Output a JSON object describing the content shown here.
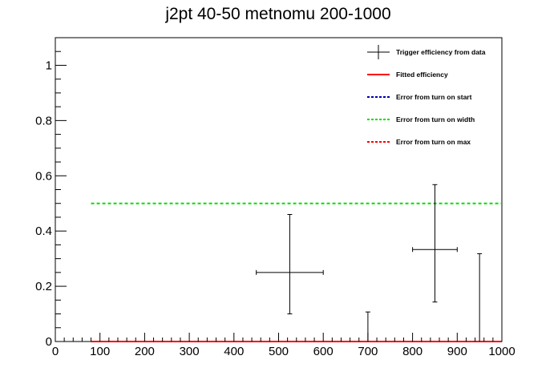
{
  "chart_data": {
    "type": "scatter",
    "title": "j2pt 40-50 metnomu 200-1000",
    "xlabel": "",
    "ylabel": "",
    "xlim": [
      0,
      1000
    ],
    "ylim": [
      0,
      1.1
    ],
    "x_ticks": [
      "0",
      "100",
      "200",
      "300",
      "400",
      "500",
      "600",
      "700",
      "800",
      "900",
      "1000"
    ],
    "y_ticks": [
      "0",
      "0.2",
      "0.4",
      "0.6",
      "0.8",
      "1"
    ],
    "grid": false,
    "legend_position": "top-right",
    "legend": [
      "Trigger efficiency from data",
      "Fitted efficiency",
      "Error from turn on start",
      "Error from turn on width",
      "Error from turn on max"
    ],
    "series": [
      {
        "name": "Trigger efficiency from data",
        "color": "#000000",
        "points": [
          {
            "x": 525,
            "y": 0.25,
            "xerr": 75,
            "ylow": 0.1,
            "yhigh": 0.46
          },
          {
            "x": 700,
            "y": 0.0,
            "xerr": 0,
            "ylow": 0.0,
            "yhigh": 0.107
          },
          {
            "x": 850,
            "y": 0.333,
            "xerr": 50,
            "ylow": 0.143,
            "yhigh": 0.568
          },
          {
            "x": 950,
            "y": 0.0,
            "xerr": 0,
            "ylow": 0.0,
            "yhigh": 0.318
          }
        ]
      },
      {
        "name": "Fitted efficiency",
        "color": "#ff0000",
        "x": [
          80,
          1000
        ],
        "y": [
          0.0,
          0.0
        ]
      },
      {
        "name": "Error from turn on start",
        "color": "#0000aa",
        "x": [
          80,
          1000
        ],
        "y": [
          0.0,
          0.0
        ]
      },
      {
        "name": "Error from turn on width",
        "color": "#00e000",
        "x": [
          80,
          1000
        ],
        "y": [
          0.5,
          0.5
        ]
      },
      {
        "name": "Error from turn on max",
        "color": "#ff0000",
        "x": [
          80,
          1000
        ],
        "y": [
          0.0,
          0.0
        ]
      }
    ]
  }
}
